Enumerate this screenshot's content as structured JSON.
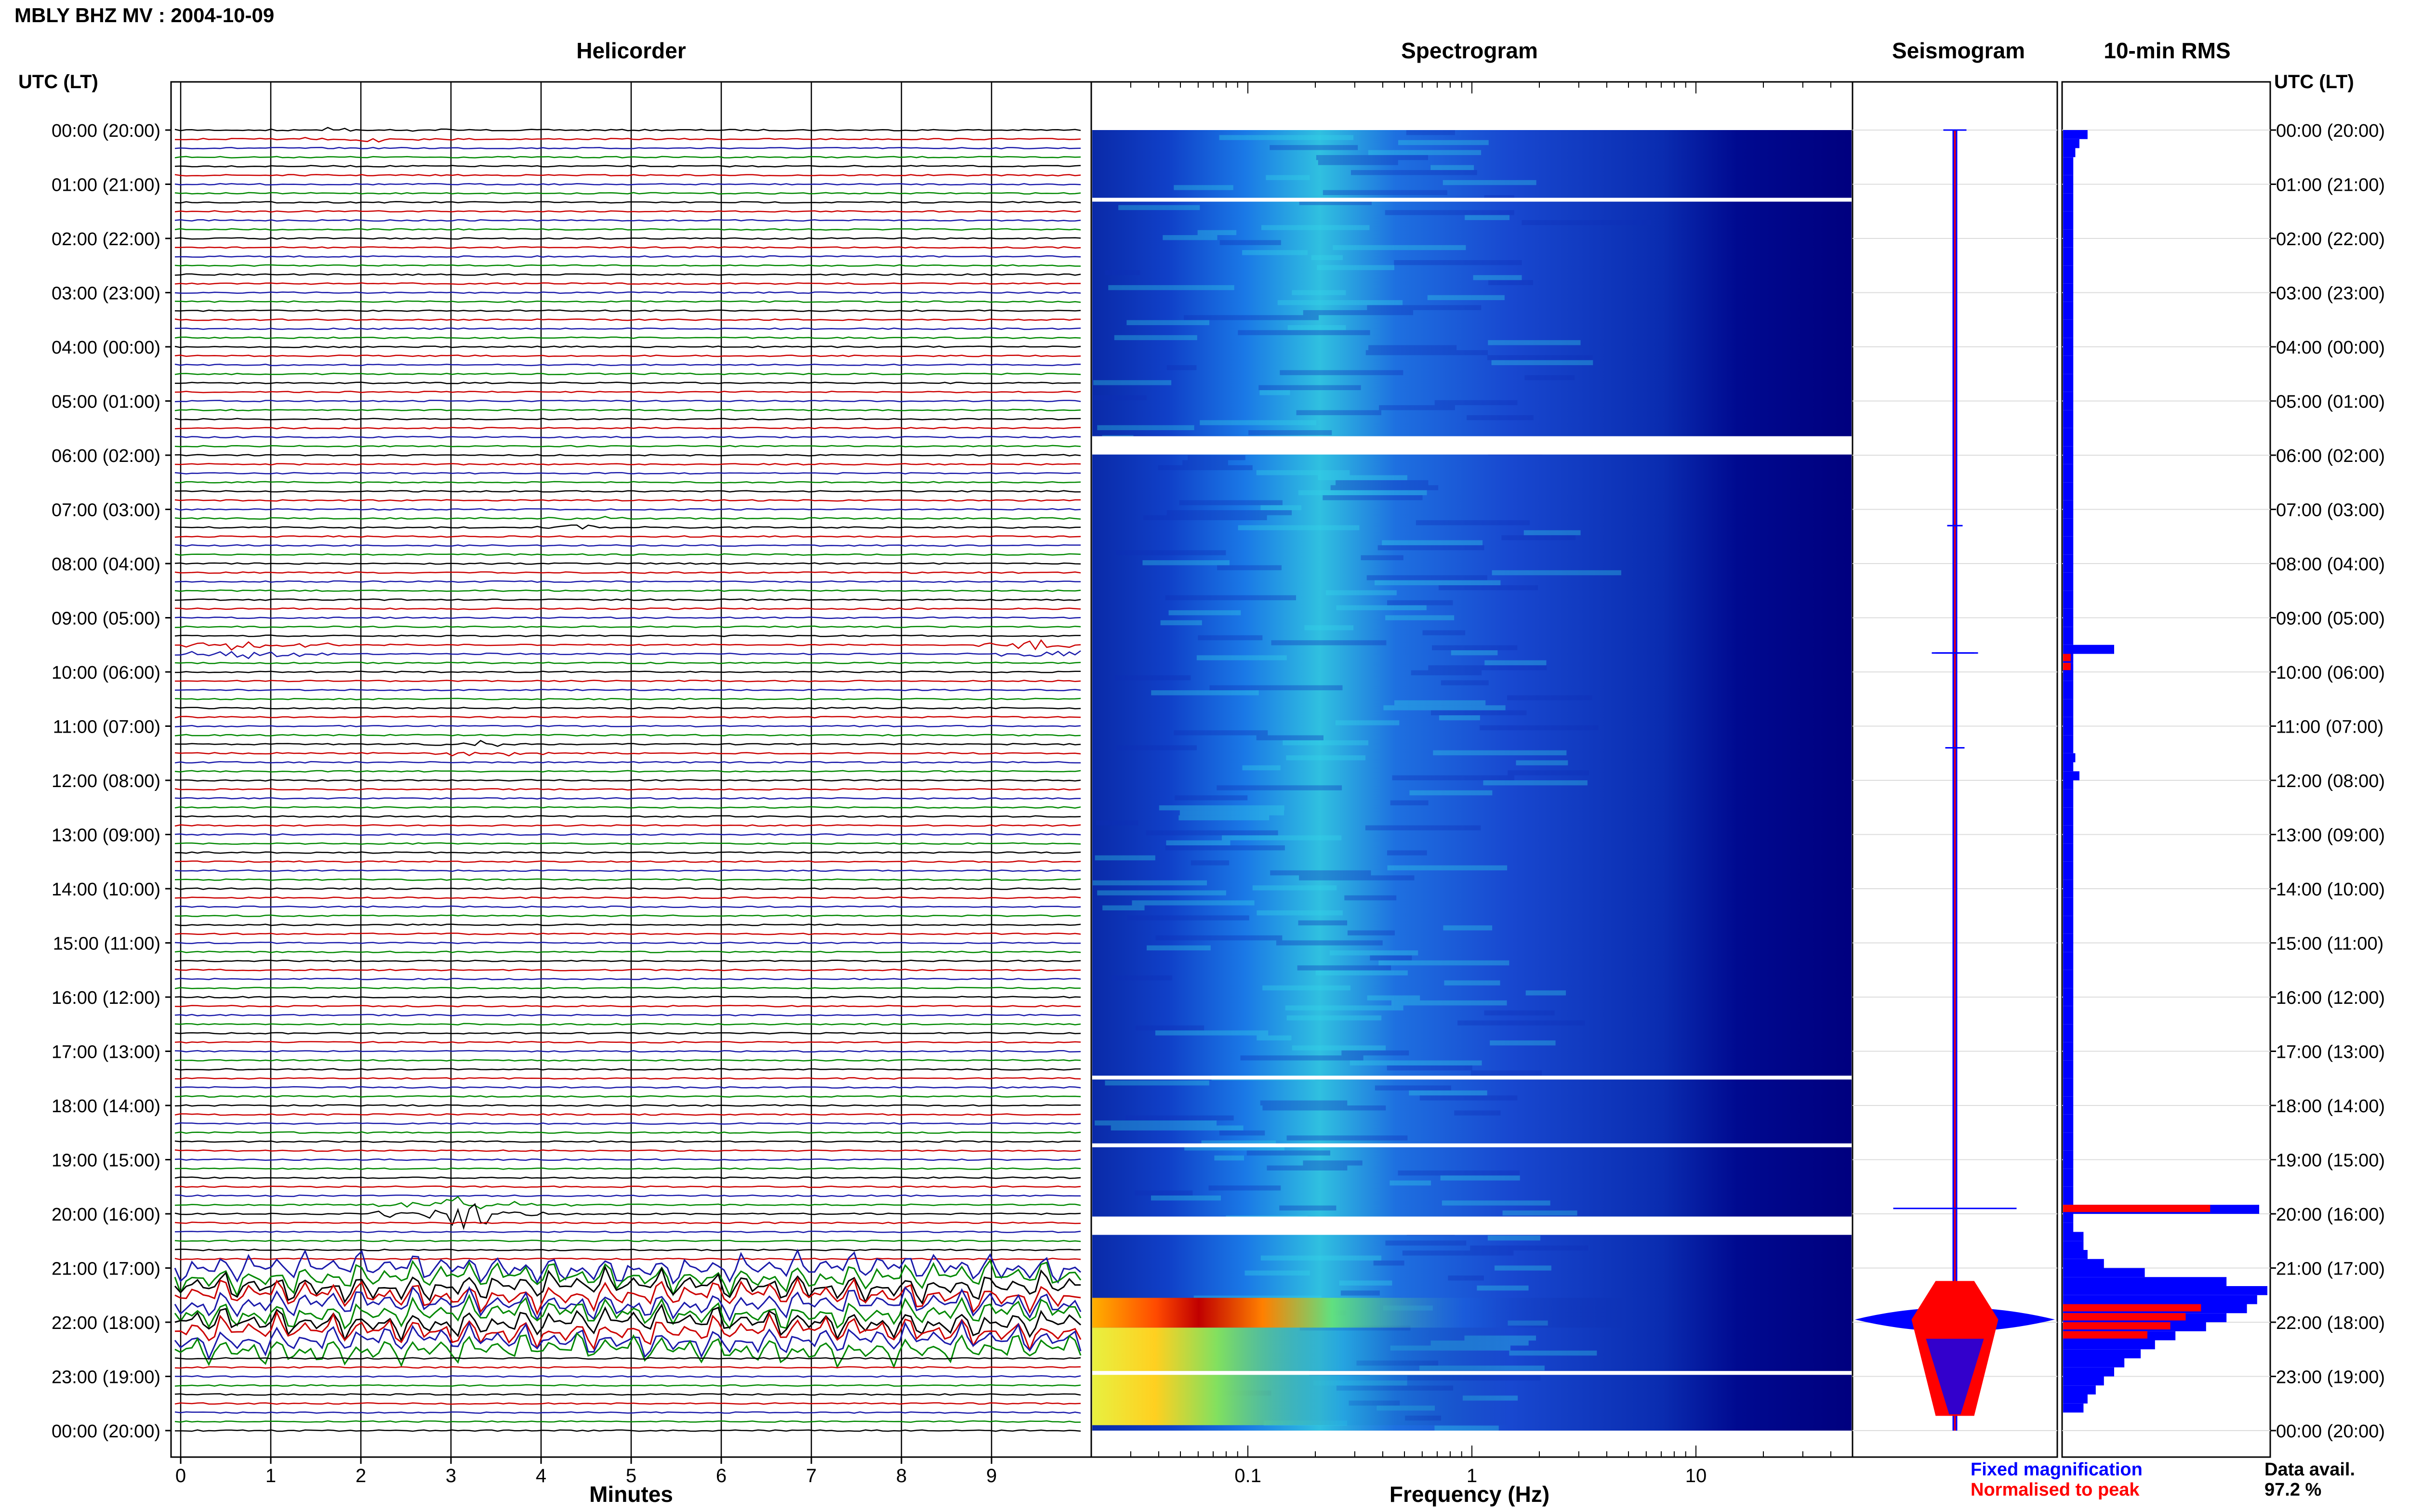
{
  "header": {
    "title": "MBLY BHZ MV : 2004-10-09"
  },
  "panels": {
    "helicorder": "Helicorder",
    "spectrogram": "Spectrogram",
    "seismogram": "Seismogram",
    "rms": "10-min RMS"
  },
  "axis": {
    "left_header": "UTC (LT)",
    "right_header": "UTC (LT)",
    "helicorder_xlabel": "Minutes",
    "spectrogram_xlabel": "Frequency (Hz)"
  },
  "legend": {
    "fixed": "Fixed magnification",
    "normalised": "Normalised to peak",
    "data_avail_label": "Data avail.",
    "data_avail_value": "97.2 %"
  },
  "colors": {
    "trace_cycle": [
      "#000000",
      "#cc0000",
      "#1a1aaa",
      "#008800"
    ],
    "fixed": "#0000ff",
    "normalised": "#ff0000",
    "spectrogram_background": "#00007f"
  },
  "chart_data": {
    "type": "helicorder",
    "time_labels": [
      "00:00 (20:00)",
      "01:00 (21:00)",
      "02:00 (22:00)",
      "03:00 (23:00)",
      "04:00 (00:00)",
      "05:00 (01:00)",
      "06:00 (02:00)",
      "07:00 (03:00)",
      "08:00 (04:00)",
      "09:00 (05:00)",
      "10:00 (06:00)",
      "11:00 (07:00)",
      "12:00 (08:00)",
      "13:00 (09:00)",
      "14:00 (10:00)",
      "15:00 (11:00)",
      "16:00 (12:00)",
      "17:00 (13:00)",
      "18:00 (14:00)",
      "19:00 (15:00)",
      "20:00 (16:00)",
      "21:00 (17:00)",
      "22:00 (18:00)",
      "23:00 (19:00)",
      "00:00 (20:00)"
    ],
    "helicorder_xticks": [
      "0",
      "1",
      "2",
      "3",
      "4",
      "5",
      "6",
      "7",
      "8",
      "9"
    ],
    "helicorder_xrange": [
      0,
      10
    ],
    "spectrogram_xticks": [
      "0.1",
      "1",
      "10"
    ],
    "spectrogram_xrange": [
      0.02,
      50
    ],
    "spectrogram_scale": "log",
    "data_gaps_hours": [
      1.25,
      5.65,
      17.45,
      18.7,
      20.05,
      22.9
    ],
    "events": [
      {
        "hour": 0.0,
        "minute": 2.0,
        "amp": 0.3
      },
      {
        "hour": 7.3,
        "minute": 4.5,
        "amp": 0.2
      },
      {
        "hour": 9.65,
        "minute": 0.7,
        "amp": 0.6
      },
      {
        "hour": 9.65,
        "minute": 9.7,
        "amp": 0.5
      },
      {
        "hour": 11.4,
        "minute": 3.5,
        "amp": 0.25
      },
      {
        "hour": 19.9,
        "minute": 3.2,
        "amp": 1.6
      }
    ],
    "rms_fixed": [
      0.12,
      0.08,
      0.06,
      0.05,
      0.05,
      0.05,
      0.05,
      0.05,
      0.05,
      0.05,
      0.05,
      0.05,
      0.05,
      0.05,
      0.05,
      0.05,
      0.05,
      0.05,
      0.05,
      0.05,
      0.05,
      0.05,
      0.05,
      0.05,
      0.05,
      0.05,
      0.05,
      0.05,
      0.05,
      0.05,
      0.05,
      0.05,
      0.05,
      0.05,
      0.05,
      0.05,
      0.05,
      0.05,
      0.05,
      0.05,
      0.05,
      0.05,
      0.05,
      0.05,
      0.05,
      0.05,
      0.05,
      0.05,
      0.05,
      0.05,
      0.05,
      0.05,
      0.05,
      0.05,
      0.05,
      0.05,
      0.05,
      0.25,
      0.05,
      0.05,
      0.05,
      0.05,
      0.05,
      0.05,
      0.05,
      0.05,
      0.05,
      0.05,
      0.05,
      0.06,
      0.05,
      0.08,
      0.05,
      0.05,
      0.05,
      0.05,
      0.05,
      0.05,
      0.05,
      0.05,
      0.05,
      0.05,
      0.05,
      0.05,
      0.05,
      0.05,
      0.05,
      0.05,
      0.05,
      0.05,
      0.05,
      0.05,
      0.05,
      0.05,
      0.05,
      0.05,
      0.05,
      0.05,
      0.05,
      0.05,
      0.05,
      0.05,
      0.05,
      0.05,
      0.05,
      0.05,
      0.05,
      0.05,
      0.05,
      0.05,
      0.05,
      0.05,
      0.05,
      0.05,
      0.05,
      0.05,
      0.05,
      0.05,
      0.05,
      0.96,
      0.05,
      0.05,
      0.1,
      0.1,
      0.12,
      0.2,
      0.4,
      0.8,
      1.0,
      0.95,
      0.9,
      0.8,
      0.7,
      0.55,
      0.45,
      0.38,
      0.3,
      0.25,
      0.2,
      0.16,
      0.12,
      0.1
    ],
    "rms_normalised_hours": [
      9.6,
      9.9,
      19.9,
      21.6,
      21.7,
      21.8,
      21.9,
      22.0,
      22.1,
      22.2
    ]
  }
}
